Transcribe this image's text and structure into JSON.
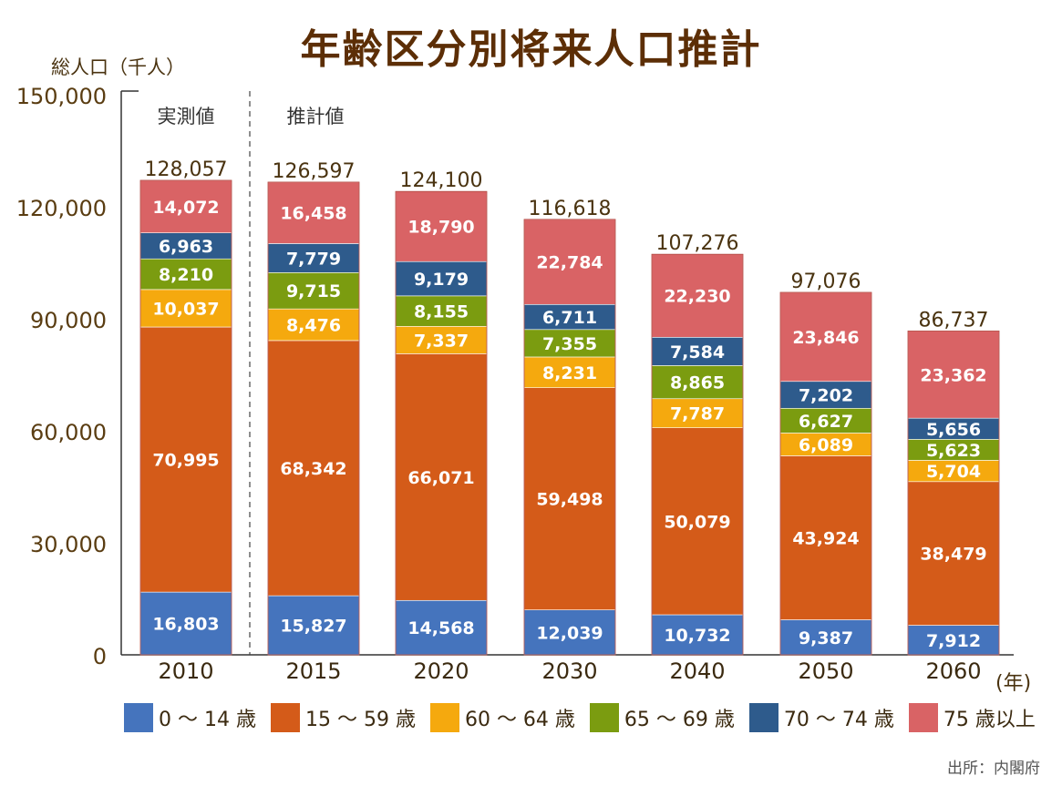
{
  "chart_data": {
    "type": "bar",
    "stacked": true,
    "title": "年齢区分別将来人口推計",
    "ylabel": "総人口（千人）",
    "xlabel": "(年)",
    "ylim": [
      0,
      150000
    ],
    "yticks": [
      0,
      30000,
      60000,
      90000,
      120000,
      150000
    ],
    "ytick_labels": [
      "0",
      "30,000",
      "60,000",
      "90,000",
      "120,000",
      "150,000"
    ],
    "categories": [
      "2010",
      "2015",
      "2020",
      "2030",
      "2040",
      "2050",
      "2060"
    ],
    "series": [
      {
        "name": "0 ～ 14 歳",
        "color": "#4574bd",
        "values": [
          16803,
          15827,
          14568,
          12039,
          10732,
          9387,
          7912
        ],
        "labels": [
          "16,803",
          "15,827",
          "14,568",
          "12,039",
          "10,732",
          "9,387",
          "7,912"
        ]
      },
      {
        "name": "15 ～ 59 歳",
        "color": "#d45b19",
        "values": [
          70995,
          68342,
          66071,
          59498,
          50079,
          43924,
          38479
        ],
        "labels": [
          "70,995",
          "68,342",
          "66,071",
          "59,498",
          "50,079",
          "43,924",
          "38,479"
        ]
      },
      {
        "name": "60 ～ 64 歳",
        "color": "#f5a90e",
        "values": [
          10037,
          8476,
          7337,
          8231,
          7787,
          6089,
          5704
        ],
        "labels": [
          "10,037",
          "8,476",
          "7,337",
          "8,231",
          "7,787",
          "6,089",
          "5,704"
        ]
      },
      {
        "name": "65 ～ 69 歳",
        "color": "#7b9c10",
        "values": [
          8210,
          9715,
          8155,
          7355,
          8865,
          6627,
          5623
        ],
        "labels": [
          "8,210",
          "9,715",
          "8,155",
          "7,355",
          "8,865",
          "6,627",
          "5,623"
        ]
      },
      {
        "name": "70 ～ 74 歳",
        "color": "#2e5b8c",
        "values": [
          6963,
          7779,
          9179,
          6711,
          7584,
          7202,
          5656
        ],
        "labels": [
          "6,963",
          "7,779",
          "9,179",
          "6,711",
          "7,584",
          "7,202",
          "5,656"
        ]
      },
      {
        "name": "75 歳以上",
        "color": "#d96365",
        "values": [
          14072,
          16458,
          18790,
          22784,
          22230,
          23846,
          23362
        ],
        "labels": [
          "14,072",
          "16,458",
          "18,790",
          "22,784",
          "22,230",
          "23,846",
          "23,362"
        ]
      }
    ],
    "totals": [
      128057,
      126597,
      124100,
      116618,
      107276,
      97076,
      86737
    ],
    "total_labels": [
      "128,057",
      "126,597",
      "124,100",
      "116,618",
      "107,276",
      "97,076",
      "86,737"
    ],
    "annotations": [
      "実測値",
      "推計値"
    ],
    "legend_position": "bottom"
  },
  "source": "出所：内閣府"
}
